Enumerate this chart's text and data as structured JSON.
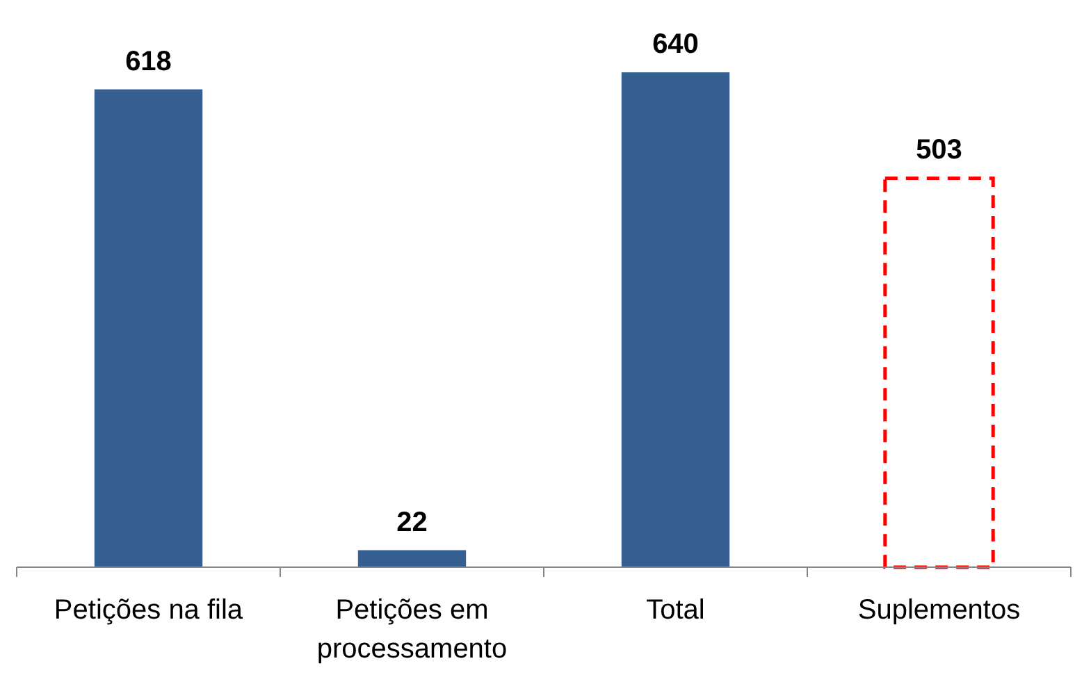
{
  "chart_data": {
    "type": "bar",
    "categories": [
      "Petições na fila",
      "Petições em processamento",
      "Total",
      "Suplementos"
    ],
    "stacked": true,
    "data_labels": true,
    "series": [
      {
        "color": "#365f91",
        "values": [
          618,
          22,
          640,
          null
        ]
      },
      {
        "color": "#ff0000",
        "line_style": "dashed",
        "values": [
          null,
          null,
          null,
          503
        ]
      }
    ]
  }
}
